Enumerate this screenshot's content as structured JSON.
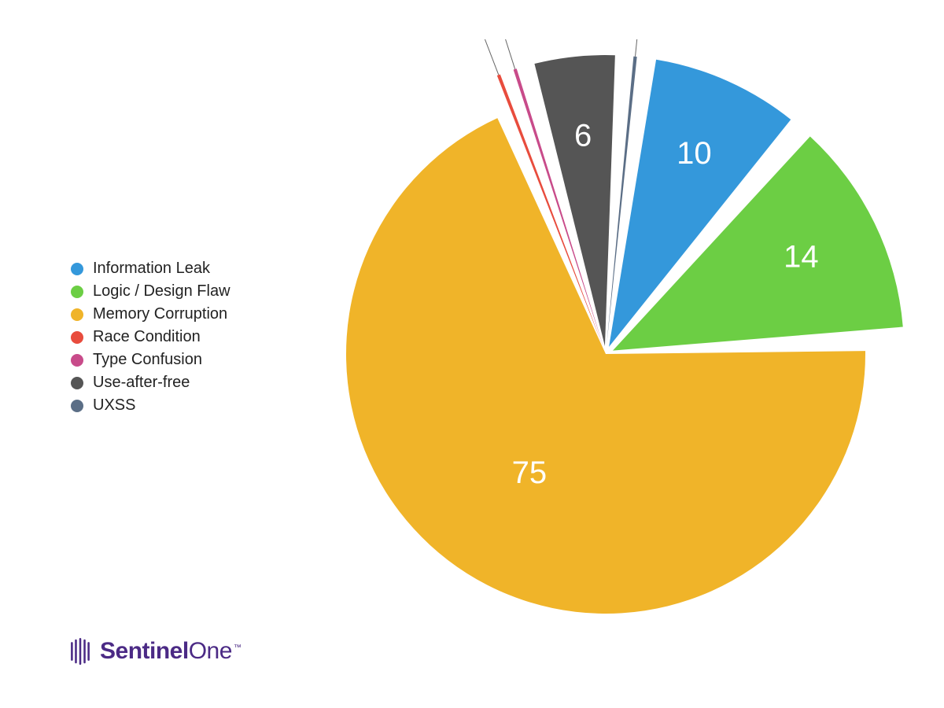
{
  "chart": {
    "type": "pie",
    "background_color": "#ffffff",
    "gap_deg": 4,
    "slice_label_color": "#ffffff",
    "slice_label_fontsize": 40,
    "callout_label_color": "#111111",
    "callout_label_fontsize": 42,
    "callout_line_color": "#666666",
    "inner_radius": 0,
    "outer_radius": 330,
    "exploded_extra_radius": 40,
    "slices": [
      {
        "label": "UXSS",
        "value": 1,
        "color": "#5b6e86",
        "exploded": true,
        "show_value_inside": false,
        "callout": true
      },
      {
        "label": "Information Leak",
        "value": 10,
        "color": "#3498db",
        "exploded": true,
        "show_value_inside": true,
        "callout": false
      },
      {
        "label": "Logic / Design Flaw",
        "value": 14,
        "color": "#6cce44",
        "exploded": true,
        "show_value_inside": true,
        "callout": false
      },
      {
        "label": "Memory Corruption",
        "value": 75,
        "color": "#f0b429",
        "exploded": false,
        "show_value_inside": true,
        "callout": false
      },
      {
        "label": "Race Condition",
        "value": 1,
        "color": "#e84c3d",
        "exploded": true,
        "show_value_inside": false,
        "callout": true
      },
      {
        "label": "Type Confusion",
        "value": 1,
        "color": "#c84b8a",
        "exploded": true,
        "show_value_inside": false,
        "callout": true
      },
      {
        "label": "Use-after-free",
        "value": 6,
        "color": "#555555",
        "exploded": true,
        "show_value_inside": true,
        "callout": false
      }
    ],
    "start_angle_deg": -86
  },
  "legend": {
    "order": [
      "Information Leak",
      "Logic / Design Flaw",
      "Memory Corruption",
      "Race Condition",
      "Type Confusion",
      "Use-after-free",
      "UXSS"
    ],
    "colors": {
      "Information Leak": "#3498db",
      "Logic / Design Flaw": "#6cce44",
      "Memory Corruption": "#f0b429",
      "Race Condition": "#e84c3d",
      "Type Confusion": "#c84b8a",
      "Use-after-free": "#555555",
      "UXSS": "#5b6e86"
    },
    "dot_size": 16,
    "label_fontsize": 20,
    "label_color": "#222222"
  },
  "brand": {
    "name_bold": "Sentinel",
    "name_light": "One",
    "color": "#4b2a85"
  }
}
